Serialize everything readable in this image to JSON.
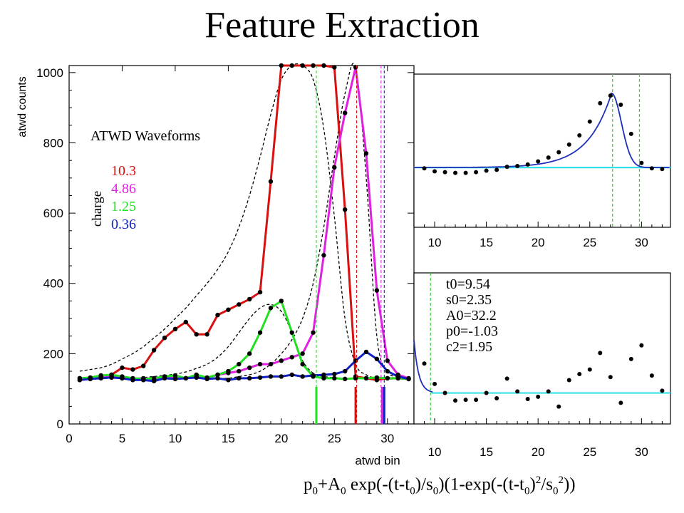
{
  "title": "Feature Extraction",
  "formula": {
    "text": "p0+A0 exp(-(t-t0)/s0)(1-exp(-(t-t0)2/s02))",
    "parts": [
      {
        "t": "p",
        "s": ""
      },
      {
        "t": "0",
        "s": "sub"
      },
      {
        "t": "+A",
        "s": ""
      },
      {
        "t": "0",
        "s": "sub"
      },
      {
        "t": " exp(-(t-t",
        "s": ""
      },
      {
        "t": "0",
        "s": "sub"
      },
      {
        "t": ")/s",
        "s": ""
      },
      {
        "t": "0",
        "s": "sub"
      },
      {
        "t": ")(1-exp(-(t-t",
        "s": ""
      },
      {
        "t": "0",
        "s": "sub"
      },
      {
        "t": ")",
        "s": ""
      },
      {
        "t": "2",
        "s": "sup"
      },
      {
        "t": "/s",
        "s": ""
      },
      {
        "t": "0",
        "s": "sub"
      },
      {
        "t": "2",
        "s": "sup"
      },
      {
        "t": "))",
        "s": ""
      }
    ]
  },
  "chart_data": [
    {
      "type": "line",
      "xlabel": "atwd bin",
      "ylabel": "atwd counts",
      "xlim": [
        0,
        32.5
      ],
      "ylim": [
        0,
        1020
      ],
      "xticks": [
        0,
        5,
        10,
        15,
        20,
        25,
        30
      ],
      "yticks": [
        0,
        200,
        400,
        600,
        800,
        1000
      ],
      "legend_title": "ATWD Waveforms",
      "legend_axis_label": "charge",
      "x": [
        1,
        2,
        3,
        4,
        5,
        6,
        7,
        8,
        9,
        10,
        11,
        12,
        13,
        14,
        15,
        16,
        17,
        18,
        19,
        20,
        21,
        22,
        23,
        24,
        25,
        26,
        27,
        28,
        29,
        30,
        31,
        32
      ],
      "series": [
        {
          "name": "10.3",
          "color": "#d81010",
          "values": [
            125,
            130,
            135,
            140,
            160,
            155,
            165,
            210,
            245,
            270,
            290,
            255,
            255,
            310,
            325,
            340,
            355,
            375,
            690,
            1020,
            1020,
            1020,
            1020,
            1020,
            1015,
            610,
            135,
            130,
            125,
            130,
            130,
            128
          ],
          "marker_x": 27.0
        },
        {
          "name": "4.86",
          "color": "#e020e0",
          "values": [
            130,
            128,
            132,
            135,
            130,
            128,
            130,
            128,
            135,
            130,
            130,
            135,
            130,
            140,
            145,
            150,
            160,
            170,
            170,
            180,
            190,
            200,
            260,
            480,
            730,
            885,
            1015,
            770,
            380,
            180,
            140,
            130
          ],
          "marker_x": 29.5
        },
        {
          "name": "1.25",
          "color": "#20e020",
          "values": [
            130,
            132,
            138,
            140,
            135,
            130,
            128,
            130,
            135,
            138,
            130,
            140,
            132,
            140,
            150,
            170,
            200,
            260,
            330,
            350,
            260,
            170,
            135,
            130,
            130,
            128,
            130,
            130,
            132,
            130,
            130,
            128
          ],
          "marker_x": 23.3
        },
        {
          "name": "0.36",
          "color": "#1020c0",
          "values": [
            125,
            128,
            130,
            132,
            130,
            125,
            125,
            122,
            130,
            128,
            130,
            132,
            128,
            130,
            125,
            130,
            130,
            132,
            135,
            135,
            140,
            135,
            138,
            140,
            142,
            150,
            180,
            205,
            185,
            150,
            135,
            128
          ],
          "marker_x": 29.7
        }
      ],
      "fits": [
        {
          "kind": "dashed",
          "values": [
            150,
            155,
            160,
            170,
            185,
            200,
            220,
            245,
            270,
            300,
            330,
            365,
            400,
            440,
            490,
            560,
            650,
            760,
            880,
            980,
            1020,
            1020,
            980,
            840,
            590,
            300,
            170,
            140,
            130,
            128,
            128,
            128
          ]
        },
        {
          "kind": "dashed",
          "values": [
            130,
            130,
            130,
            130,
            130,
            130,
            130,
            130,
            130,
            130,
            130,
            130,
            130,
            130,
            130,
            135,
            140,
            150,
            170,
            200,
            240,
            300,
            400,
            560,
            760,
            940,
            1015,
            700,
            250,
            150,
            135,
            130
          ]
        },
        {
          "kind": "dashed",
          "values": [
            130,
            130,
            130,
            130,
            130,
            130,
            132,
            135,
            138,
            142,
            148,
            158,
            170,
            190,
            220,
            260,
            300,
            330,
            340,
            320,
            260,
            180,
            145,
            135,
            132,
            130,
            130,
            130,
            130,
            130,
            130,
            130
          ]
        }
      ],
      "vlines": [
        {
          "x": 23.3,
          "color": "#20e020",
          "style": "dashed"
        },
        {
          "x": 27.1,
          "color": "#d81010",
          "style": "dashed"
        },
        {
          "x": 29.4,
          "color": "#e020e0",
          "style": "dashed"
        },
        {
          "x": 29.7,
          "color": "#1020c0",
          "style": "dashed"
        }
      ]
    },
    {
      "type": "scatter",
      "xlim": [
        8,
        32.8
      ],
      "ylim": [
        0,
        1
      ],
      "xticks": [
        10,
        15,
        20,
        25,
        30
      ],
      "x": [
        9,
        10,
        11,
        12,
        13,
        14,
        15,
        16,
        17,
        18,
        19,
        20,
        21,
        22,
        23,
        24,
        25,
        26,
        27,
        28,
        29,
        30,
        31,
        32
      ],
      "points": [
        0.385,
        0.365,
        0.36,
        0.355,
        0.355,
        0.36,
        0.37,
        0.375,
        0.395,
        0.4,
        0.41,
        0.43,
        0.455,
        0.49,
        0.54,
        0.6,
        0.69,
        0.81,
        0.86,
        0.8,
        0.61,
        0.42,
        0.385,
        0.38
      ],
      "fit": {
        "baseline": 0.39,
        "t_rise": 27.1,
        "peak": 0.875
      },
      "fit_color": "#1f2fb8",
      "baseline_color": "#33e0e8",
      "vlines": [
        {
          "x": 27.2,
          "color": "#30d030"
        },
        {
          "x": 29.8,
          "color": "#30d030"
        }
      ]
    },
    {
      "type": "scatter",
      "xlim": [
        8,
        32.8
      ],
      "ylim": [
        0,
        1
      ],
      "xticks": [
        10,
        15,
        20,
        25,
        30
      ],
      "x": [
        9,
        10,
        11,
        12,
        13,
        14,
        15,
        16,
        17,
        18,
        19,
        20,
        21,
        22,
        23,
        24,
        25,
        26,
        27,
        28,
        29,
        30,
        31,
        32
      ],
      "points": [
        0.4,
        0.265,
        0.205,
        0.155,
        0.16,
        0.16,
        0.205,
        0.17,
        0.3,
        0.215,
        0.165,
        0.18,
        0.215,
        0.115,
        0.29,
        0.33,
        0.36,
        0.47,
        0.31,
        0.14,
        0.43,
        0.52,
        0.32,
        0.22
      ],
      "fit_color": "#1f2fb8",
      "baseline_color": "#33e0e8",
      "vlines": [
        {
          "x": 9.6,
          "color": "#30d030"
        }
      ],
      "params": [
        "t0=9.54",
        "s0=2.35",
        "A0=32.2",
        "p0=-1.03",
        "c2=1.95"
      ]
    }
  ]
}
